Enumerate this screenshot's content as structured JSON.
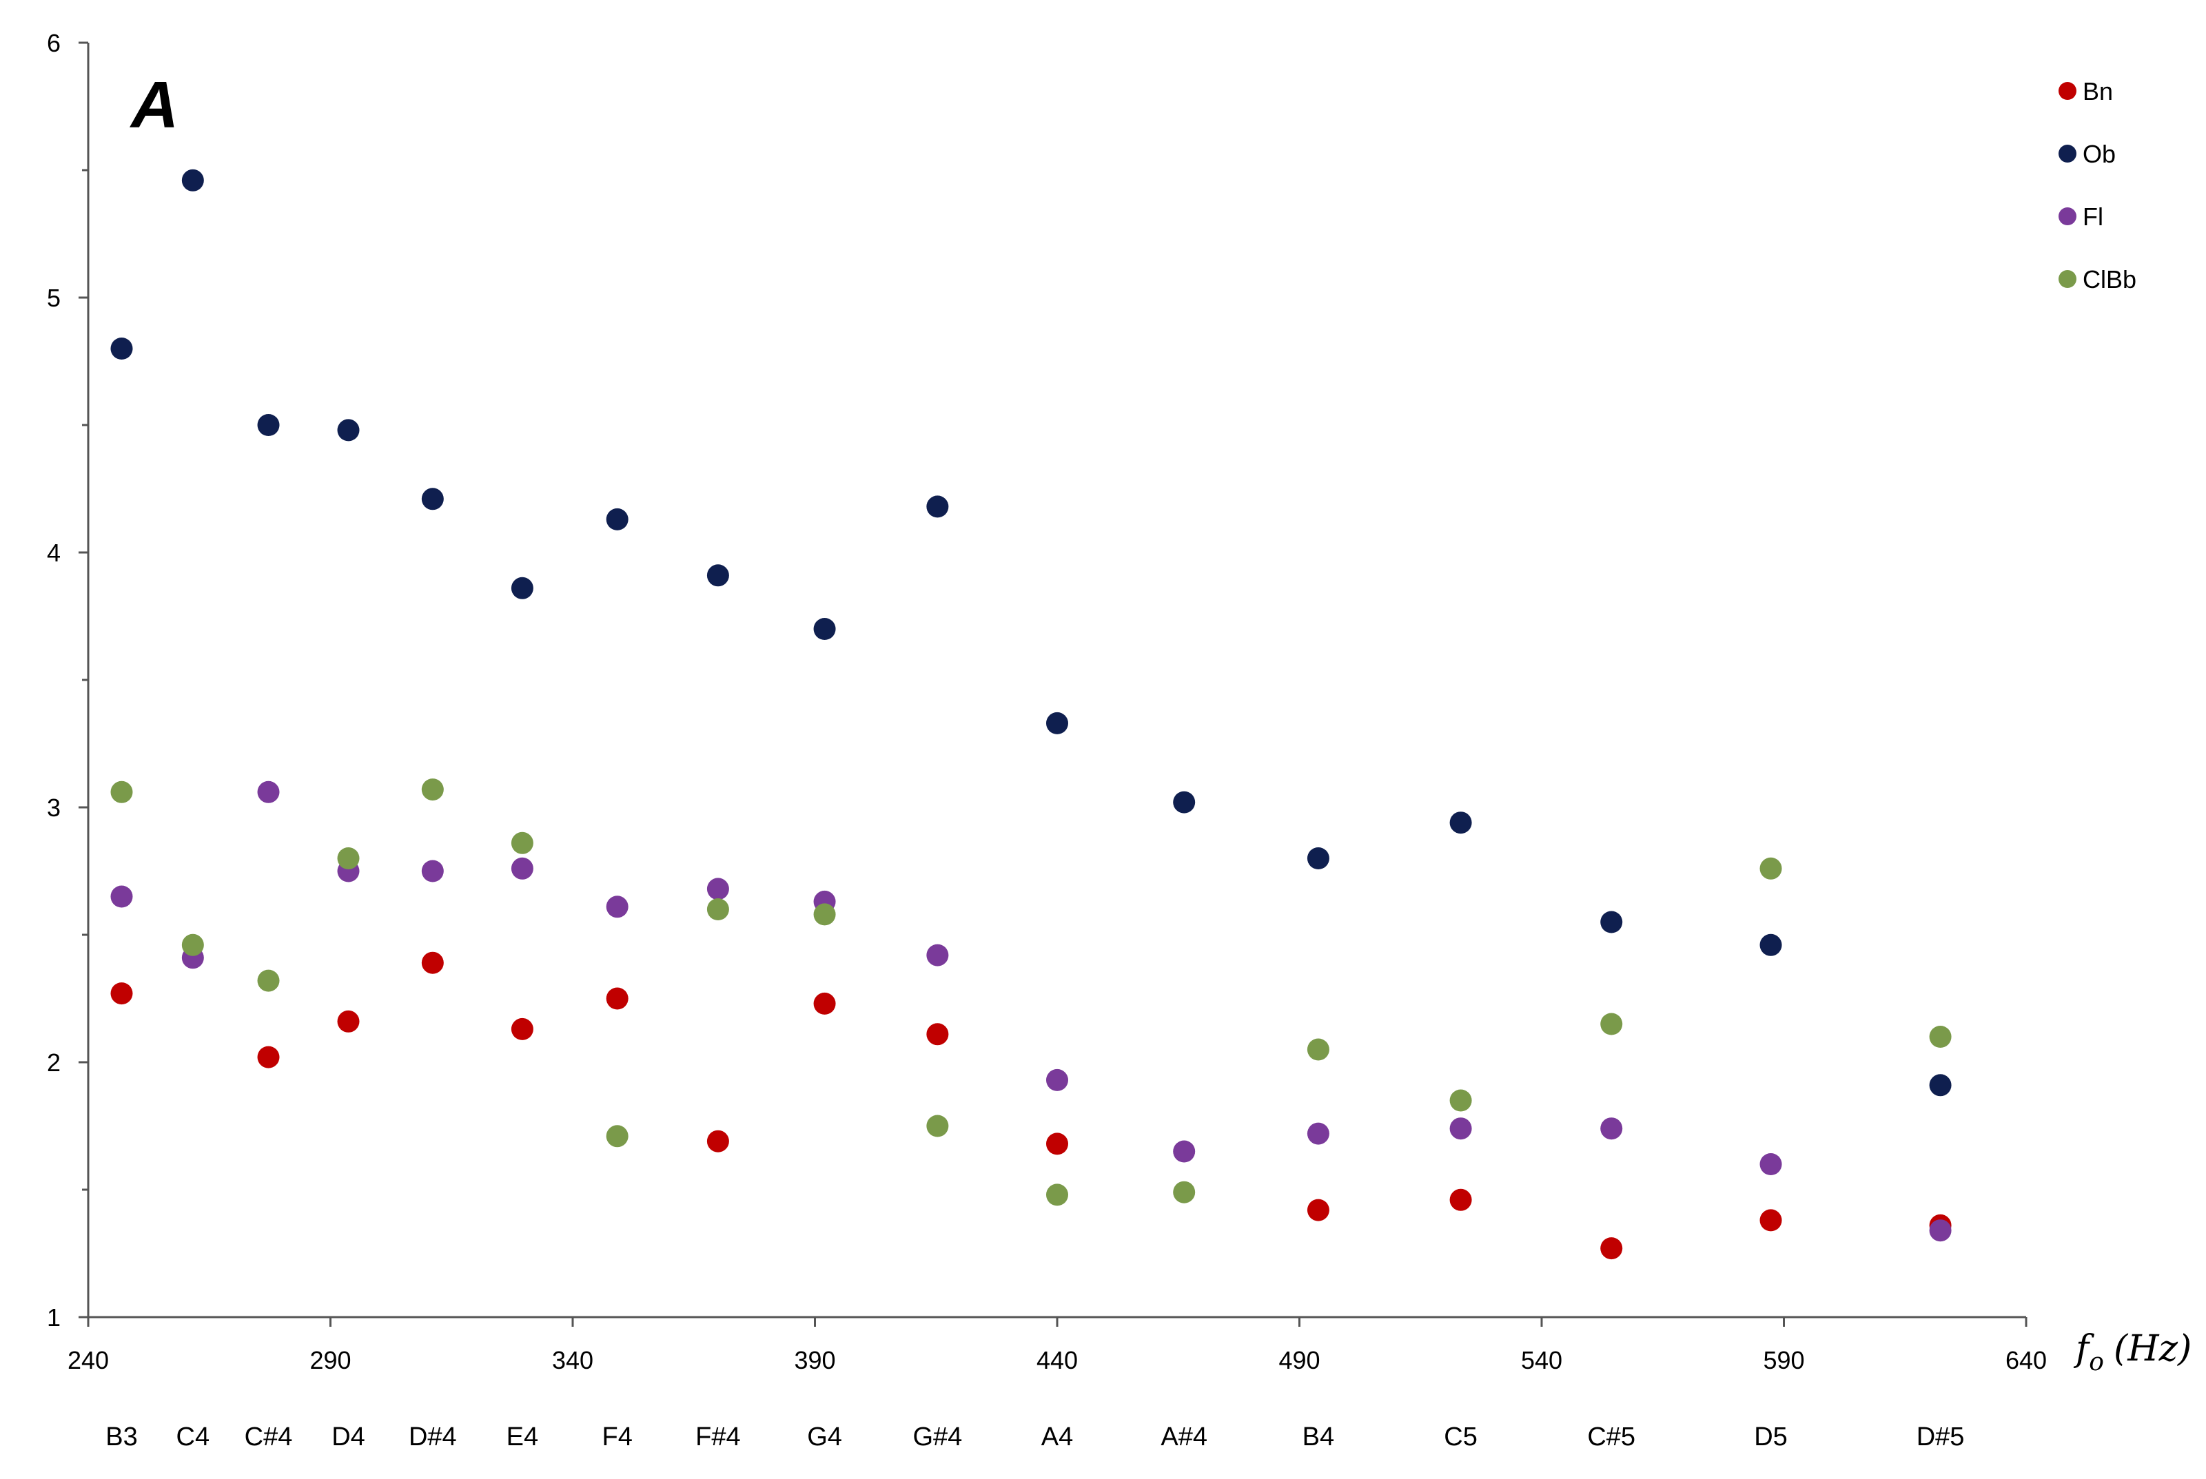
{
  "chart_data": {
    "type": "scatter",
    "panel_label": "A",
    "xlabel_main": "f",
    "xlabel_sub": "o",
    "xlabel_unit": "(Hz)",
    "ylabel": "",
    "xlim": [
      240,
      640
    ],
    "ylim": [
      1,
      6
    ],
    "x_ticks": [
      240,
      290,
      340,
      390,
      440,
      490,
      540,
      590,
      640
    ],
    "y_ticks": [
      1,
      2,
      3,
      4,
      5,
      6
    ],
    "y_minor_ticks": [
      1.5,
      2.5,
      3.5,
      4.5,
      5.5
    ],
    "grid": false,
    "legend_position": "top-right",
    "notes": [
      {
        "name": "B3",
        "x": 246.9
      },
      {
        "name": "C4",
        "x": 261.6
      },
      {
        "name": "C#4",
        "x": 277.2
      },
      {
        "name": "D4",
        "x": 293.7
      },
      {
        "name": "D#4",
        "x": 311.1
      },
      {
        "name": "E4",
        "x": 329.6
      },
      {
        "name": "F4",
        "x": 349.2
      },
      {
        "name": "F#4",
        "x": 370.0
      },
      {
        "name": "G4",
        "x": 392.0
      },
      {
        "name": "G#4",
        "x": 415.3
      },
      {
        "name": "A4",
        "x": 440.0
      },
      {
        "name": "A#4",
        "x": 466.2
      },
      {
        "name": "B4",
        "x": 493.9
      },
      {
        "name": "C5",
        "x": 523.3
      },
      {
        "name": "C#5",
        "x": 554.4
      },
      {
        "name": "D5",
        "x": 587.3
      },
      {
        "name": "D#5",
        "x": 622.3
      }
    ],
    "series": [
      {
        "name": "Bn",
        "color": "#c00000",
        "points": [
          [
            246.9,
            2.27
          ],
          [
            277.2,
            2.02
          ],
          [
            293.7,
            2.16
          ],
          [
            311.1,
            2.39
          ],
          [
            329.6,
            2.13
          ],
          [
            349.2,
            2.25
          ],
          [
            370.0,
            1.69
          ],
          [
            392.0,
            2.23
          ],
          [
            415.3,
            2.11
          ],
          [
            440.0,
            1.68
          ],
          [
            493.9,
            1.42
          ],
          [
            523.3,
            1.46
          ],
          [
            554.4,
            1.27
          ],
          [
            587.3,
            1.38
          ],
          [
            622.3,
            1.36
          ]
        ]
      },
      {
        "name": "Ob",
        "color": "#0f1f4f",
        "points": [
          [
            246.9,
            4.8
          ],
          [
            261.6,
            5.46
          ],
          [
            277.2,
            4.5
          ],
          [
            293.7,
            4.48
          ],
          [
            311.1,
            4.21
          ],
          [
            329.6,
            3.86
          ],
          [
            349.2,
            4.13
          ],
          [
            370.0,
            3.91
          ],
          [
            392.0,
            3.7
          ],
          [
            415.3,
            4.18
          ],
          [
            440.0,
            3.33
          ],
          [
            466.2,
            3.02
          ],
          [
            493.9,
            2.8
          ],
          [
            523.3,
            2.94
          ],
          [
            554.4,
            2.55
          ],
          [
            587.3,
            2.46
          ],
          [
            622.3,
            1.91
          ]
        ]
      },
      {
        "name": "Fl",
        "color": "#7a3a9a",
        "points": [
          [
            246.9,
            2.65
          ],
          [
            261.6,
            2.41
          ],
          [
            277.2,
            3.06
          ],
          [
            293.7,
            2.75
          ],
          [
            311.1,
            2.75
          ],
          [
            329.6,
            2.76
          ],
          [
            349.2,
            2.61
          ],
          [
            370.0,
            2.68
          ],
          [
            392.0,
            2.63
          ],
          [
            415.3,
            2.42
          ],
          [
            440.0,
            1.93
          ],
          [
            466.2,
            1.65
          ],
          [
            493.9,
            1.72
          ],
          [
            523.3,
            1.74
          ],
          [
            554.4,
            1.74
          ],
          [
            587.3,
            1.6
          ],
          [
            622.3,
            1.34
          ]
        ]
      },
      {
        "name": "ClBb",
        "color": "#7a9a4a",
        "points": [
          [
            246.9,
            3.06
          ],
          [
            261.6,
            2.46
          ],
          [
            277.2,
            2.32
          ],
          [
            293.7,
            2.8
          ],
          [
            311.1,
            3.07
          ],
          [
            329.6,
            2.86
          ],
          [
            349.2,
            1.71
          ],
          [
            370.0,
            2.6
          ],
          [
            392.0,
            2.58
          ],
          [
            415.3,
            1.75
          ],
          [
            440.0,
            1.48
          ],
          [
            466.2,
            1.49
          ],
          [
            493.9,
            2.05
          ],
          [
            523.3,
            1.85
          ],
          [
            554.4,
            2.15
          ],
          [
            587.3,
            2.76
          ],
          [
            622.3,
            2.1
          ]
        ]
      }
    ]
  }
}
